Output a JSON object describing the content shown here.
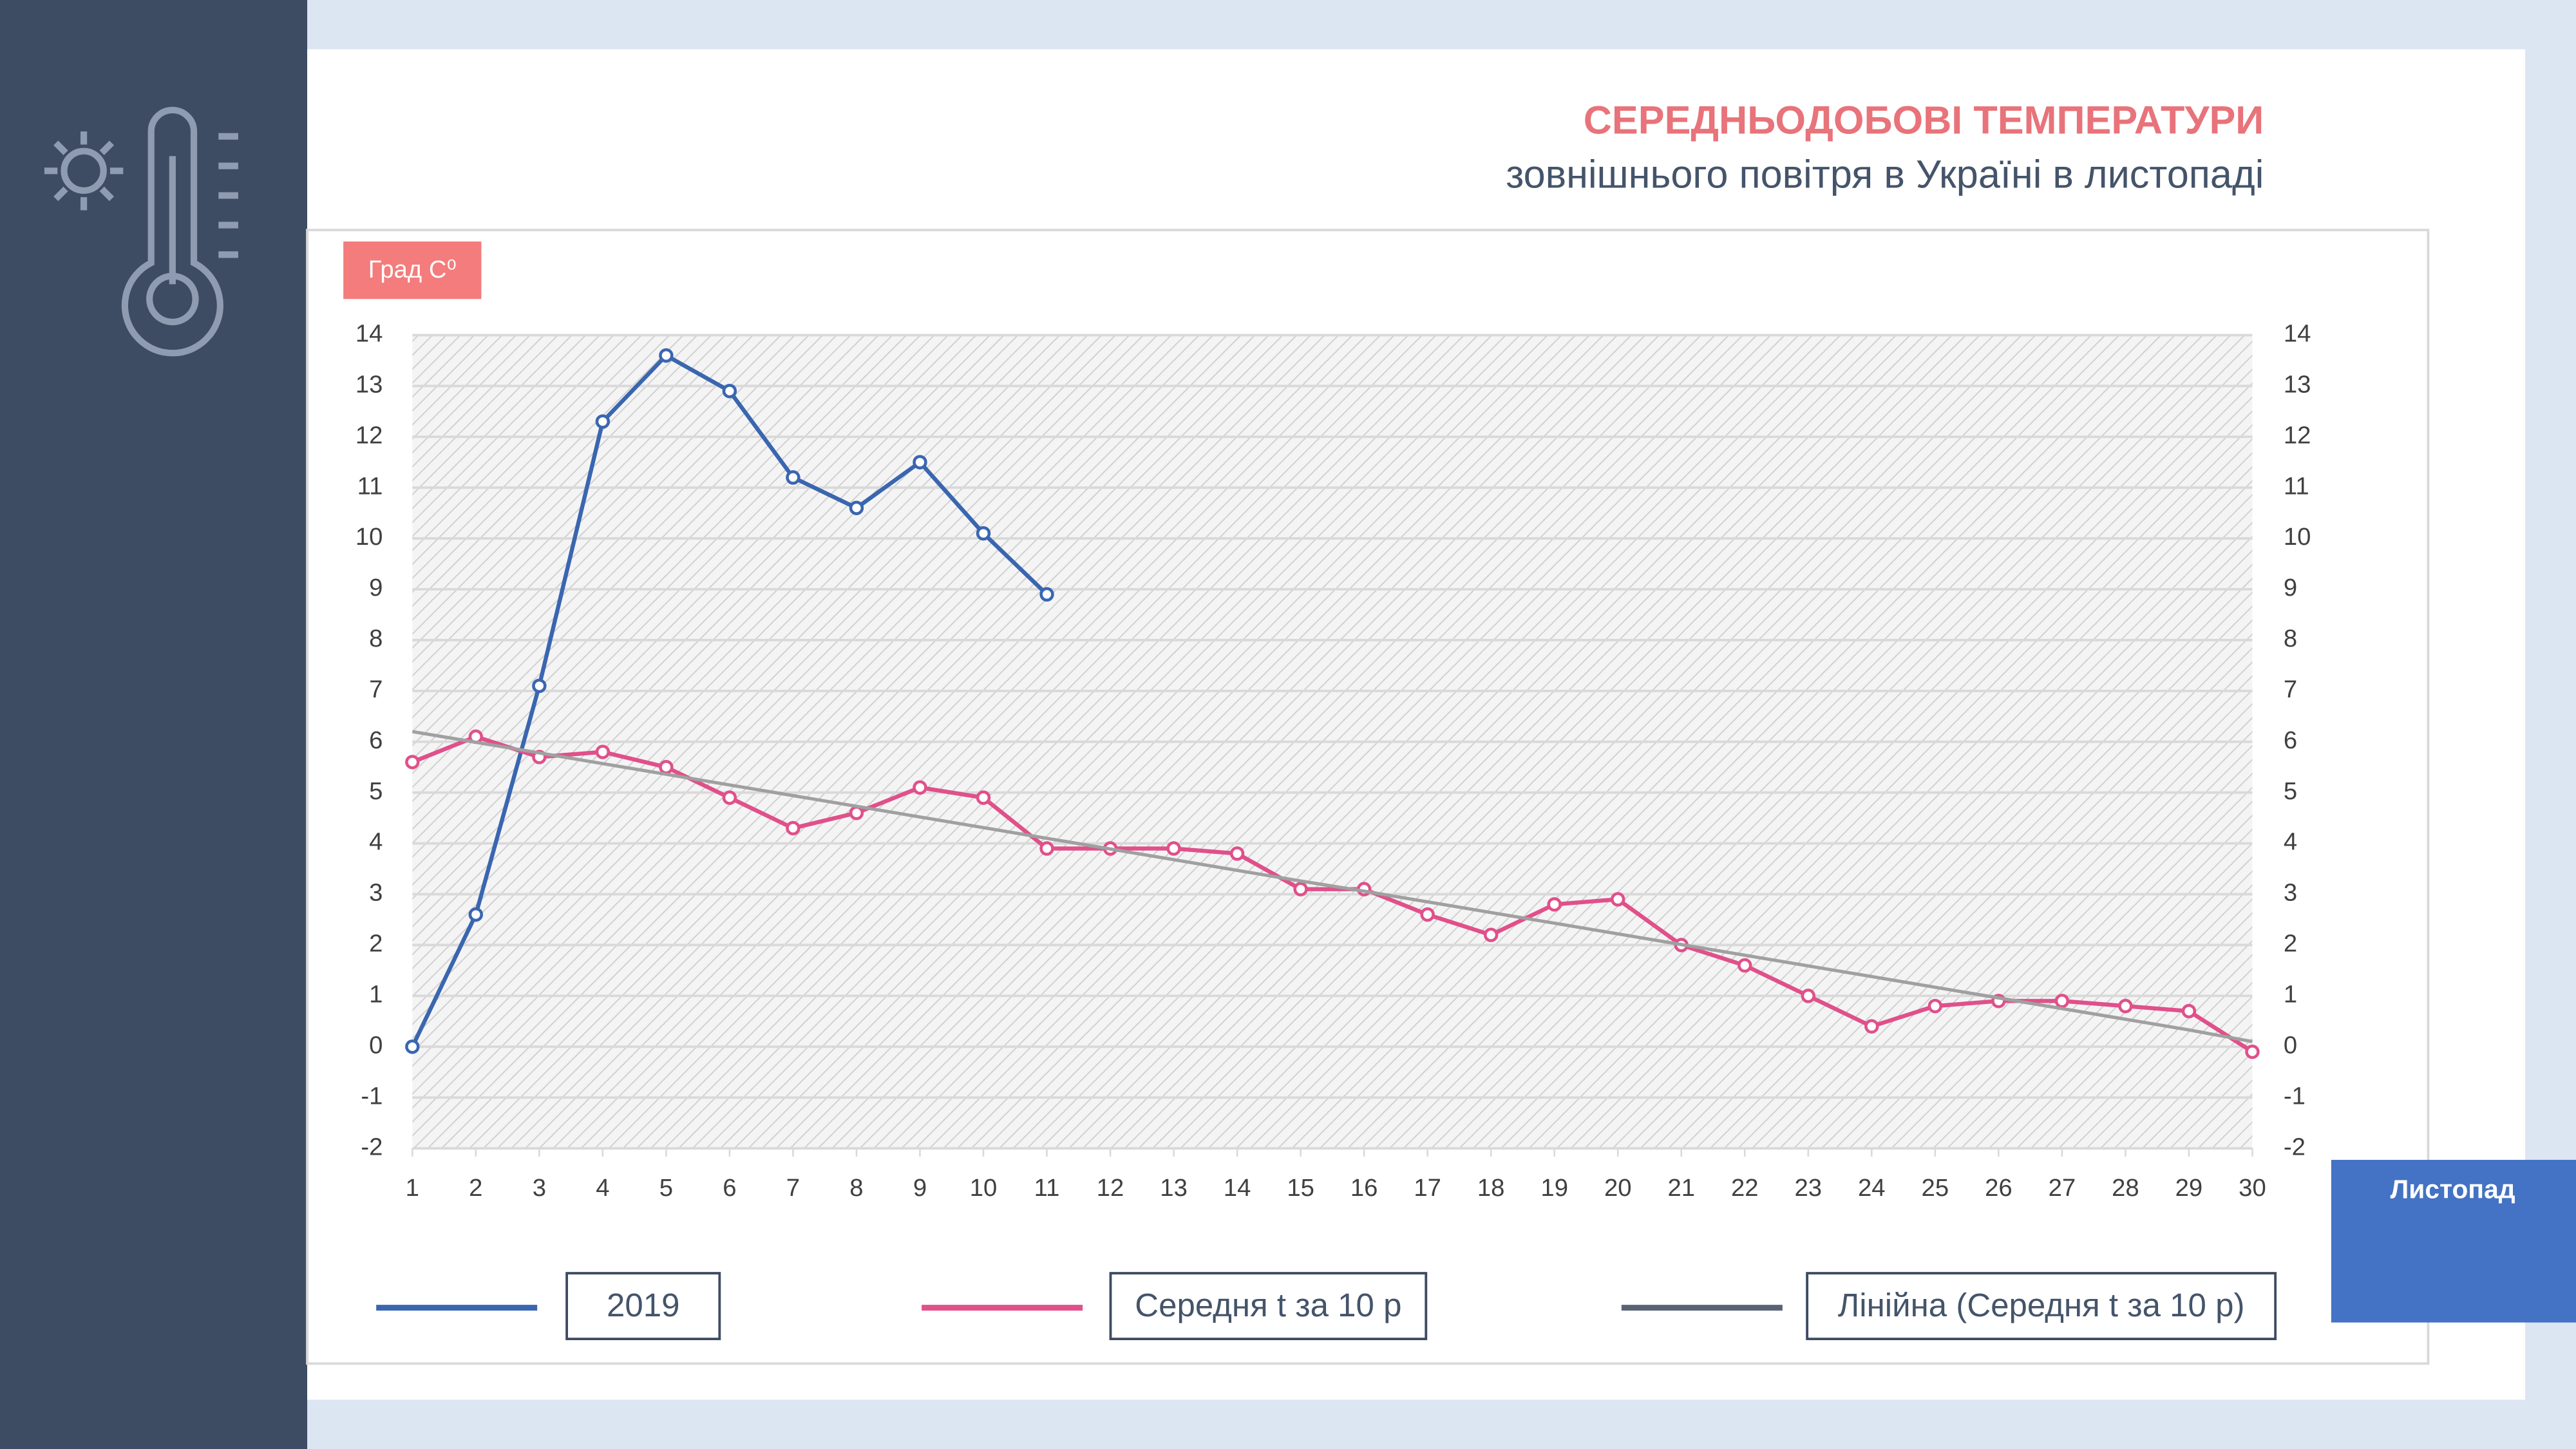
{
  "chart_data": {
    "type": "line",
    "title": "СЕРЕДНЬОДОБОВІ ТЕМПЕРАТУРИ",
    "subtitle": "зовнішнього повітря в Україні в листопаді",
    "y_axis_label": "Град С⁰",
    "x_axis_label": "Листопад",
    "x": [
      1,
      2,
      3,
      4,
      5,
      6,
      7,
      8,
      9,
      10,
      11,
      12,
      13,
      14,
      15,
      16,
      17,
      18,
      19,
      20,
      21,
      22,
      23,
      24,
      25,
      26,
      27,
      28,
      29,
      30
    ],
    "xlim": [
      1,
      30
    ],
    "xticks": [
      1,
      2,
      3,
      4,
      5,
      6,
      7,
      8,
      9,
      10,
      11,
      12,
      13,
      14,
      15,
      16,
      17,
      18,
      19,
      20,
      21,
      22,
      23,
      24,
      25,
      26,
      27,
      28,
      29,
      30
    ],
    "ylim": [
      -2,
      14
    ],
    "yticks": [
      -2,
      -1,
      0,
      1,
      2,
      3,
      4,
      5,
      6,
      7,
      8,
      9,
      10,
      11,
      12,
      13,
      14
    ],
    "y2lim": [
      -2,
      14
    ],
    "y2ticks": [
      -2,
      -1,
      0,
      1,
      2,
      3,
      4,
      5,
      6,
      7,
      8,
      9,
      10,
      11,
      12,
      13,
      14
    ],
    "grid": true,
    "series": [
      {
        "name": "2019",
        "color": "#3a66b0",
        "markers": true,
        "values": [
          0,
          2.6,
          7.1,
          12.3,
          13.6,
          12.9,
          11.2,
          10.6,
          11.5,
          10.1,
          8.9,
          null,
          null,
          null,
          null,
          null,
          null,
          null,
          null,
          null,
          null,
          null,
          null,
          null,
          null,
          null,
          null,
          null,
          null,
          null
        ]
      },
      {
        "name": "Середня t за 10 р",
        "color": "#e0508a",
        "markers": true,
        "values": [
          5.6,
          6.1,
          5.7,
          5.8,
          5.5,
          4.9,
          4.3,
          4.6,
          5.1,
          4.9,
          3.9,
          3.9,
          3.9,
          3.8,
          3.1,
          3.1,
          2.6,
          2.2,
          2.8,
          2.9,
          2.0,
          1.6,
          1.0,
          0.4,
          0.8,
          0.9,
          0.9,
          0.8,
          0.7,
          -0.1
        ]
      },
      {
        "name": "Лінійна (Середня t за 10 р)",
        "color": "#a0a0a0",
        "markers": false,
        "values": [
          6.2,
          5.99,
          5.78,
          5.57,
          5.36,
          5.15,
          4.94,
          4.73,
          4.52,
          4.31,
          4.1,
          3.89,
          3.68,
          3.47,
          3.26,
          3.06,
          2.85,
          2.64,
          2.43,
          2.22,
          2.01,
          1.8,
          1.59,
          1.38,
          1.17,
          0.96,
          0.75,
          0.54,
          0.33,
          0.1
        ]
      }
    ]
  }
}
